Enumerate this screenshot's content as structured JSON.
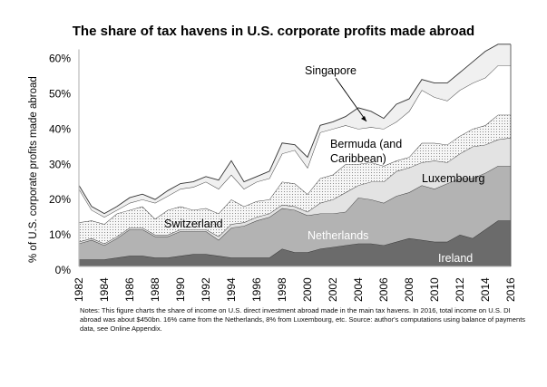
{
  "chart_data": {
    "type": "area",
    "stacked": true,
    "title": "The share of tax havens in U.S. corporate profits made abroad",
    "xlabel": "",
    "ylabel": "% of U.S. corporate profits made abroad",
    "ylim": [
      0,
      60
    ],
    "yticks": [
      "0%",
      "10%",
      "20%",
      "30%",
      "40%",
      "50%",
      "60%"
    ],
    "ytick_values": [
      0,
      10,
      20,
      30,
      40,
      50,
      60
    ],
    "xticks": [
      "1982",
      "1984",
      "1986",
      "1988",
      "1990",
      "1992",
      "1994",
      "1996",
      "1998",
      "2000",
      "2002",
      "2004",
      "2006",
      "2008",
      "2010",
      "2012",
      "2014",
      "2016"
    ],
    "x": [
      1982,
      1983,
      1984,
      1985,
      1986,
      1987,
      1988,
      1989,
      1990,
      1991,
      1992,
      1993,
      1994,
      1995,
      1996,
      1997,
      1998,
      1999,
      2000,
      2001,
      2002,
      2003,
      2004,
      2005,
      2006,
      2007,
      2008,
      2009,
      2010,
      2011,
      2012,
      2013,
      2014,
      2015,
      2016
    ],
    "grid": false,
    "legend": "inline labels",
    "series": [
      {
        "name": "Ireland",
        "color": "#6b6b6b",
        "pattern": "solid",
        "values": [
          2,
          2,
          2,
          2.5,
          3,
          3,
          2.5,
          2.5,
          3,
          3.5,
          3.5,
          3,
          2.5,
          2.5,
          2.5,
          2.5,
          5,
          4,
          4,
          5,
          5.5,
          6,
          6.5,
          6.5,
          6,
          7,
          8,
          7.5,
          7,
          7,
          9,
          8,
          10.5,
          13,
          13
        ]
      },
      {
        "name": "Netherlands",
        "color": "#b3b3b3",
        "pattern": "solid",
        "values": [
          4.5,
          5.5,
          4,
          5.5,
          7.5,
          7.5,
          6,
          6,
          7,
          6.5,
          6.5,
          4.5,
          8.5,
          9,
          10.5,
          11.5,
          11.5,
          12,
          10.5,
          10,
          9.5,
          9.5,
          13,
          12.5,
          12,
          13,
          13,
          15.5,
          15,
          16.5,
          16,
          17,
          16,
          15.5,
          15.5
        ]
      },
      {
        "name": "Luxembourg",
        "color": "#e3e3e3",
        "pattern": "solid",
        "values": [
          0.5,
          0.5,
          0.5,
          0.5,
          0.5,
          0.5,
          0.5,
          0.5,
          0.5,
          0.5,
          0.5,
          1,
          1,
          1,
          1,
          1,
          1,
          1,
          1,
          3,
          4,
          5.5,
          3.5,
          5,
          6,
          7,
          7,
          6.5,
          8,
          6,
          7,
          9,
          8,
          7.5,
          8
        ]
      },
      {
        "name": "Switzerland",
        "color": "#f2f2f2",
        "pattern": "dotted",
        "values": [
          5.5,
          5,
          5.5,
          6.5,
          5,
          6,
          4.5,
          7,
          6.5,
          5.5,
          6,
          6.5,
          7,
          4.5,
          4.5,
          4,
          6.5,
          6.5,
          5,
          7,
          7,
          8,
          6,
          5.5,
          4.5,
          3,
          3,
          5.5,
          5,
          5,
          5,
          5,
          5.5,
          7,
          6.5
        ]
      },
      {
        "name": "Bermuda (and Caribbean)",
        "color": "#ffffff",
        "pattern": "solid",
        "values": [
          9.5,
          3,
          2,
          1,
          2,
          2,
          4.5,
          4,
          5,
          6.5,
          7.5,
          7,
          7,
          5,
          5.5,
          6,
          8,
          9.5,
          7.5,
          13,
          13,
          11,
          10,
          10,
          10.5,
          11,
          13,
          15,
          13,
          12.5,
          13,
          13,
          13.5,
          14,
          14
        ]
      },
      {
        "name": "Singapore",
        "color": "#f0f0f0",
        "pattern": "solid",
        "values": [
          1,
          1,
          1,
          1,
          1.5,
          1.5,
          1,
          1.5,
          1.5,
          1.5,
          1.5,
          2.5,
          4,
          2,
          1.5,
          2,
          3,
          1.5,
          3,
          2,
          2,
          2.5,
          6,
          4.5,
          3,
          5,
          3.5,
          3,
          4,
          5,
          5,
          6,
          7.5,
          6,
          6
        ]
      }
    ],
    "annotations": [
      {
        "text": "Singapore",
        "arrow": true
      },
      {
        "text": "Bermuda (and",
        "line2": "Caribbean)"
      },
      {
        "text": "Luxembourg"
      },
      {
        "text": "Switzerland"
      },
      {
        "text": "Netherlands"
      },
      {
        "text": "Ireland"
      }
    ]
  },
  "notes": "Notes: This figure charts the share of income on U.S. direct investment abroad made in the main tax havens. In 2016, total income on U.S. DI abroad was about $450bn. 16% came from the Netherlands, 8% from Luxembourg, etc. Source: author's computations using balance of payments data, see Online Appendix."
}
